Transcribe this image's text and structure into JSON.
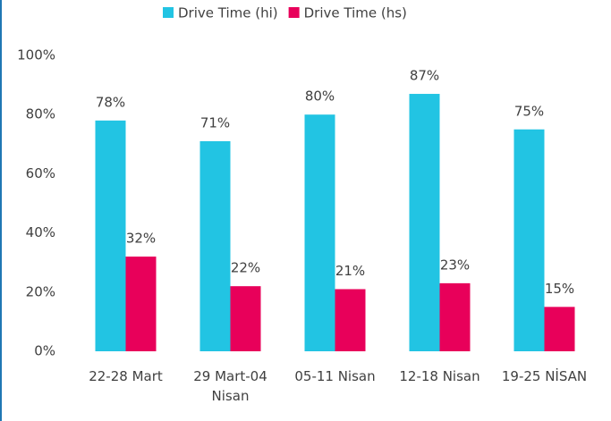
{
  "chart_data": {
    "type": "bar",
    "categories": [
      "22-28 Mart",
      "29 Mart-04 Nisan",
      "05-11 Nisan",
      "12-18 Nisan",
      "19-25 NİSAN"
    ],
    "series": [
      {
        "name": "Drive Time (hi)",
        "color": "#22c4e3",
        "values": [
          78,
          71,
          80,
          87,
          75
        ],
        "value_labels": [
          "78%",
          "71%",
          "80%",
          "87%",
          "75%"
        ]
      },
      {
        "name": "Drive Time (hs)",
        "color": "#e8005a",
        "values": [
          32,
          22,
          21,
          23,
          15
        ],
        "value_labels": [
          "32%",
          "22%",
          "21%",
          "23%",
          "15%"
        ]
      }
    ],
    "ylim": [
      0,
      100
    ],
    "yticks": [
      {
        "value": 0,
        "label": "0%"
      },
      {
        "value": 20,
        "label": "20%"
      },
      {
        "value": 40,
        "label": "40%"
      },
      {
        "value": 60,
        "label": "60%"
      },
      {
        "value": 80,
        "label": "80%"
      },
      {
        "value": 100,
        "label": "100%"
      }
    ],
    "grid": false,
    "legend": "top"
  }
}
